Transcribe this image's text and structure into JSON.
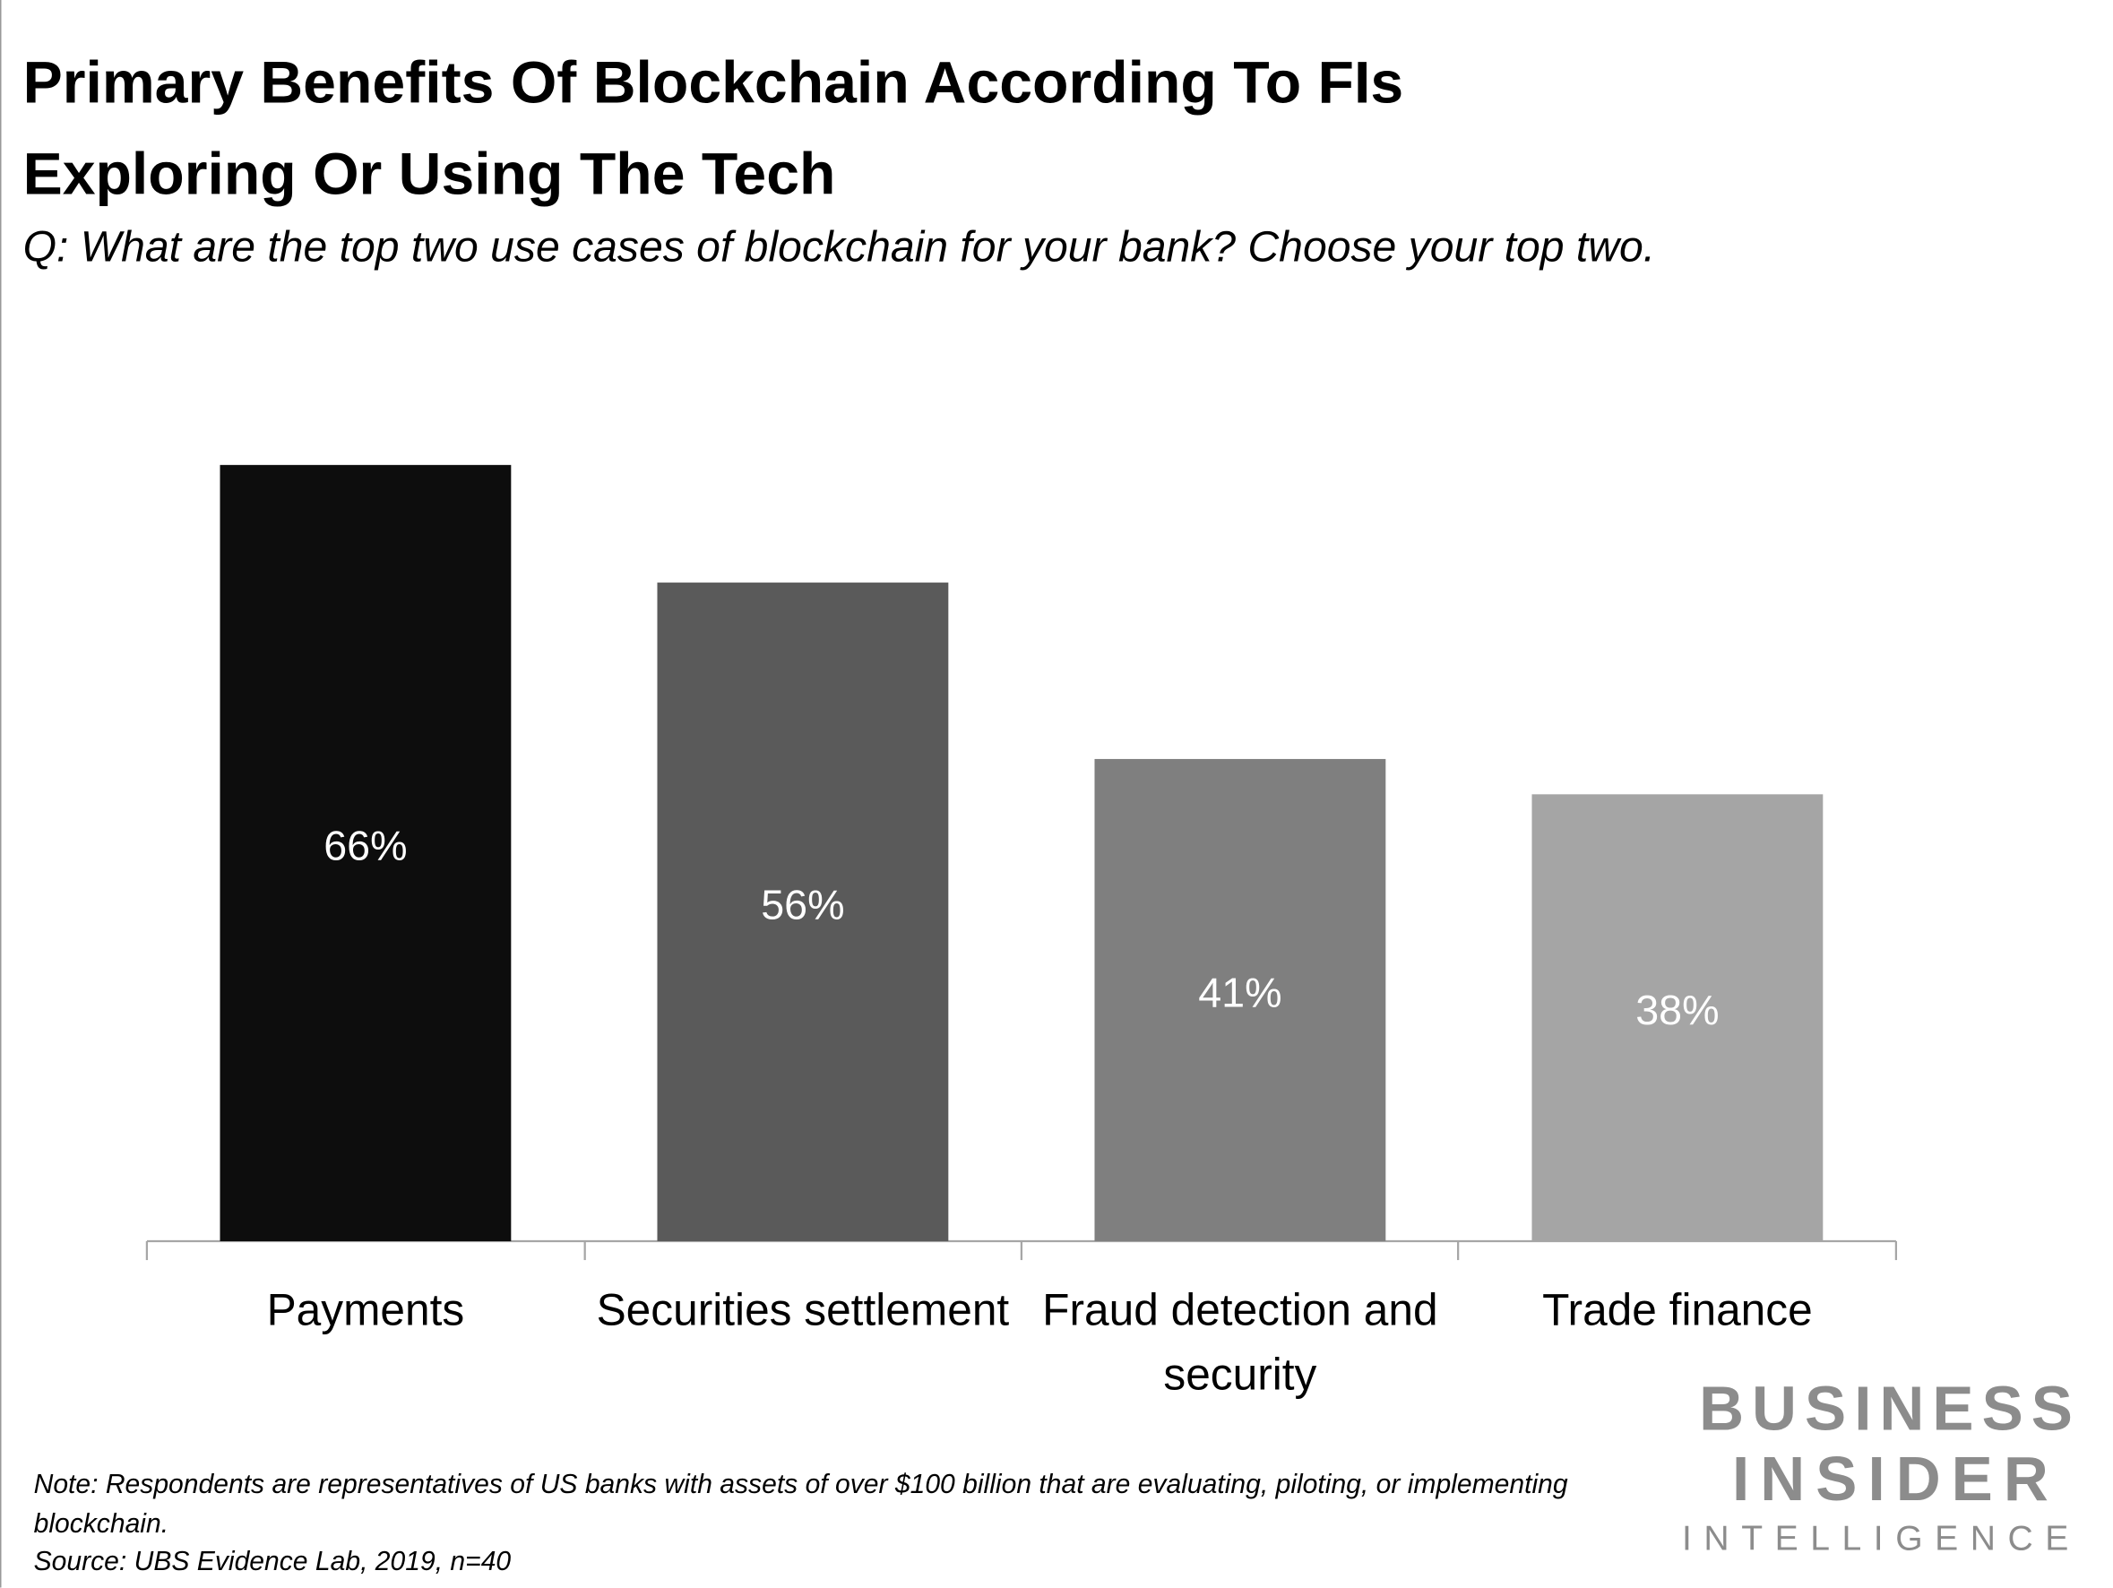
{
  "chart_data": {
    "type": "bar",
    "title": "Primary Benefits Of Blockchain According To FIs Exploring Or Using The Tech",
    "subtitle": "Q: What are the top two use cases of blockchain for your bank? Choose your top two.",
    "categories": [
      "Payments",
      "Securities settlement",
      "Fraud detection and security",
      "Trade finance"
    ],
    "values": [
      66,
      56,
      41,
      38
    ],
    "value_labels": [
      "66%",
      "56%",
      "41%",
      "38%"
    ],
    "colors": [
      "#0d0d0d",
      "#5a5a5a",
      "#7f7f7f",
      "#a5a5a5"
    ],
    "note": "Note: Respondents are representatives of US banks with assets of over $100 billion that are evaluating, piloting, or implementing blockchain.",
    "source": "Source: UBS Evidence Lab, 2019, n=40",
    "logo": [
      "BUSINESS",
      "INSIDER",
      "INTELLIGENCE"
    ]
  }
}
